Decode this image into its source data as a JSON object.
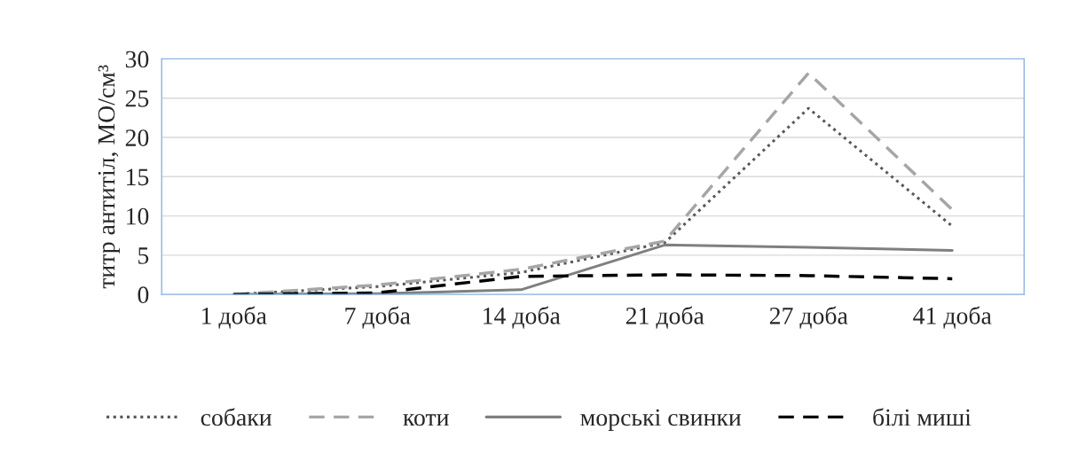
{
  "chart_data": {
    "type": "line",
    "ylabel": "титр антитіл, МО/см³",
    "categories": [
      "1 доба",
      "7 доба",
      "14 доба",
      "21 доба",
      "27 доба",
      "41 доба"
    ],
    "series": [
      {
        "name": "собаки",
        "color": "#595959",
        "line_style": "dotted",
        "values": [
          0,
          1.0,
          2.8,
          6.6,
          23.7,
          8.7
        ]
      },
      {
        "name": "коти",
        "color": "#a6a6a6",
        "line_style": "dashed",
        "values": [
          0,
          1.2,
          3.2,
          6.8,
          28.2,
          10.8
        ]
      },
      {
        "name": "морські свинки",
        "color": "#7f7f7f",
        "line_style": "solid",
        "values": [
          0,
          0.1,
          0.6,
          6.3,
          6.0,
          5.6
        ]
      },
      {
        "name": "білі миші",
        "color": "#000000",
        "line_style": "dashed",
        "values": [
          0,
          0.2,
          2.3,
          2.5,
          2.4,
          2.0
        ]
      }
    ],
    "ylim": [
      0,
      30
    ],
    "yticks": [
      0,
      5,
      10,
      15,
      20,
      25,
      30
    ],
    "grid": "y",
    "legend": "bottom",
    "marker": "none"
  }
}
